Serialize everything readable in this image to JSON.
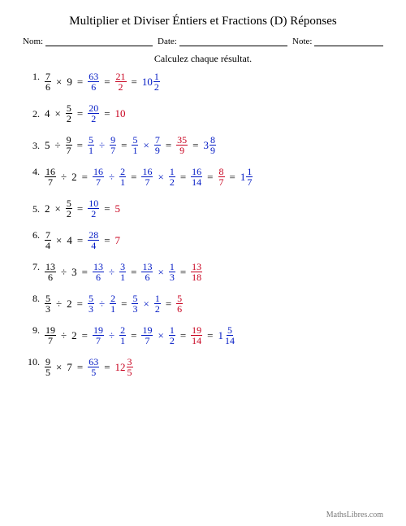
{
  "title": "Multiplier et Diviser Éntiers et Fractions (D) Réponses",
  "labels": {
    "name": "Nom:",
    "date": "Date:",
    "note": "Note:"
  },
  "instruction": "Calculez chaque résultat.",
  "footer": "MathsLibres.com",
  "colors": {
    "blue": "#0018c4",
    "red": "#c8001e",
    "text": "#000000",
    "bg": "#ffffff",
    "footer": "#7a7a7a"
  },
  "typography": {
    "base_font": "Times New Roman",
    "title_size": 15,
    "body_size": 12,
    "label_size": 11
  },
  "problems": [
    {
      "given": {
        "lhs": {
          "type": "frac",
          "n": "7",
          "d": "6"
        },
        "op": "×",
        "rhs": {
          "type": "int",
          "v": "9"
        }
      },
      "steps": [
        {
          "expr": [
            {
              "type": "frac",
              "n": "63",
              "d": "6",
              "color": "blue"
            }
          ]
        },
        {
          "expr": [
            {
              "type": "frac",
              "n": "21",
              "d": "2",
              "color": "red"
            }
          ]
        },
        {
          "expr": [
            {
              "type": "mixed",
              "w": "10",
              "n": "1",
              "d": "2",
              "color": "blue"
            }
          ]
        }
      ]
    },
    {
      "given": {
        "lhs": {
          "type": "int",
          "v": "4"
        },
        "op": "×",
        "rhs": {
          "type": "frac",
          "n": "5",
          "d": "2"
        }
      },
      "steps": [
        {
          "expr": [
            {
              "type": "frac",
              "n": "20",
              "d": "2",
              "color": "blue"
            }
          ]
        },
        {
          "expr": [
            {
              "type": "int",
              "v": "10",
              "color": "red"
            }
          ]
        }
      ]
    },
    {
      "given": {
        "lhs": {
          "type": "int",
          "v": "5"
        },
        "op": "÷",
        "rhs": {
          "type": "frac",
          "n": "9",
          "d": "7"
        }
      },
      "steps": [
        {
          "expr": [
            {
              "type": "frac",
              "n": "5",
              "d": "1",
              "color": "blue"
            },
            {
              "type": "op",
              "v": "÷",
              "color": "blue"
            },
            {
              "type": "frac",
              "n": "9",
              "d": "7",
              "color": "blue"
            }
          ]
        },
        {
          "expr": [
            {
              "type": "frac",
              "n": "5",
              "d": "1",
              "color": "blue"
            },
            {
              "type": "op",
              "v": "×",
              "color": "blue"
            },
            {
              "type": "frac",
              "n": "7",
              "d": "9",
              "color": "blue"
            }
          ]
        },
        {
          "expr": [
            {
              "type": "frac",
              "n": "35",
              "d": "9",
              "color": "red"
            }
          ]
        },
        {
          "expr": [
            {
              "type": "mixed",
              "w": "3",
              "n": "8",
              "d": "9",
              "color": "blue"
            }
          ]
        }
      ]
    },
    {
      "given": {
        "lhs": {
          "type": "frac",
          "n": "16",
          "d": "7"
        },
        "op": "÷",
        "rhs": {
          "type": "int",
          "v": "2"
        }
      },
      "steps": [
        {
          "expr": [
            {
              "type": "frac",
              "n": "16",
              "d": "7",
              "color": "blue"
            },
            {
              "type": "op",
              "v": "÷",
              "color": "blue"
            },
            {
              "type": "frac",
              "n": "2",
              "d": "1",
              "color": "blue"
            }
          ]
        },
        {
          "expr": [
            {
              "type": "frac",
              "n": "16",
              "d": "7",
              "color": "blue"
            },
            {
              "type": "op",
              "v": "×",
              "color": "blue"
            },
            {
              "type": "frac",
              "n": "1",
              "d": "2",
              "color": "blue"
            }
          ]
        },
        {
          "expr": [
            {
              "type": "frac",
              "n": "16",
              "d": "14",
              "color": "blue"
            }
          ]
        },
        {
          "expr": [
            {
              "type": "frac",
              "n": "8",
              "d": "7",
              "color": "red"
            }
          ]
        },
        {
          "expr": [
            {
              "type": "mixed",
              "w": "1",
              "n": "1",
              "d": "7",
              "color": "blue"
            }
          ]
        }
      ]
    },
    {
      "given": {
        "lhs": {
          "type": "int",
          "v": "2"
        },
        "op": "×",
        "rhs": {
          "type": "frac",
          "n": "5",
          "d": "2"
        }
      },
      "steps": [
        {
          "expr": [
            {
              "type": "frac",
              "n": "10",
              "d": "2",
              "color": "blue"
            }
          ]
        },
        {
          "expr": [
            {
              "type": "int",
              "v": "5",
              "color": "red"
            }
          ]
        }
      ]
    },
    {
      "given": {
        "lhs": {
          "type": "frac",
          "n": "7",
          "d": "4"
        },
        "op": "×",
        "rhs": {
          "type": "int",
          "v": "4"
        }
      },
      "steps": [
        {
          "expr": [
            {
              "type": "frac",
              "n": "28",
              "d": "4",
              "color": "blue"
            }
          ]
        },
        {
          "expr": [
            {
              "type": "int",
              "v": "7",
              "color": "red"
            }
          ]
        }
      ]
    },
    {
      "given": {
        "lhs": {
          "type": "frac",
          "n": "13",
          "d": "6"
        },
        "op": "÷",
        "rhs": {
          "type": "int",
          "v": "3"
        }
      },
      "steps": [
        {
          "expr": [
            {
              "type": "frac",
              "n": "13",
              "d": "6",
              "color": "blue"
            },
            {
              "type": "op",
              "v": "÷",
              "color": "blue"
            },
            {
              "type": "frac",
              "n": "3",
              "d": "1",
              "color": "blue"
            }
          ]
        },
        {
          "expr": [
            {
              "type": "frac",
              "n": "13",
              "d": "6",
              "color": "blue"
            },
            {
              "type": "op",
              "v": "×",
              "color": "blue"
            },
            {
              "type": "frac",
              "n": "1",
              "d": "3",
              "color": "blue"
            }
          ]
        },
        {
          "expr": [
            {
              "type": "frac",
              "n": "13",
              "d": "18",
              "color": "red"
            }
          ]
        }
      ]
    },
    {
      "given": {
        "lhs": {
          "type": "frac",
          "n": "5",
          "d": "3"
        },
        "op": "÷",
        "rhs": {
          "type": "int",
          "v": "2"
        }
      },
      "steps": [
        {
          "expr": [
            {
              "type": "frac",
              "n": "5",
              "d": "3",
              "color": "blue"
            },
            {
              "type": "op",
              "v": "÷",
              "color": "blue"
            },
            {
              "type": "frac",
              "n": "2",
              "d": "1",
              "color": "blue"
            }
          ]
        },
        {
          "expr": [
            {
              "type": "frac",
              "n": "5",
              "d": "3",
              "color": "blue"
            },
            {
              "type": "op",
              "v": "×",
              "color": "blue"
            },
            {
              "type": "frac",
              "n": "1",
              "d": "2",
              "color": "blue"
            }
          ]
        },
        {
          "expr": [
            {
              "type": "frac",
              "n": "5",
              "d": "6",
              "color": "red"
            }
          ]
        }
      ]
    },
    {
      "given": {
        "lhs": {
          "type": "frac",
          "n": "19",
          "d": "7"
        },
        "op": "÷",
        "rhs": {
          "type": "int",
          "v": "2"
        }
      },
      "steps": [
        {
          "expr": [
            {
              "type": "frac",
              "n": "19",
              "d": "7",
              "color": "blue"
            },
            {
              "type": "op",
              "v": "÷",
              "color": "blue"
            },
            {
              "type": "frac",
              "n": "2",
              "d": "1",
              "color": "blue"
            }
          ]
        },
        {
          "expr": [
            {
              "type": "frac",
              "n": "19",
              "d": "7",
              "color": "blue"
            },
            {
              "type": "op",
              "v": "×",
              "color": "blue"
            },
            {
              "type": "frac",
              "n": "1",
              "d": "2",
              "color": "blue"
            }
          ]
        },
        {
          "expr": [
            {
              "type": "frac",
              "n": "19",
              "d": "14",
              "color": "red"
            }
          ]
        },
        {
          "expr": [
            {
              "type": "mixed",
              "w": "1",
              "n": "5",
              "d": "14",
              "color": "blue"
            }
          ]
        }
      ]
    },
    {
      "given": {
        "lhs": {
          "type": "frac",
          "n": "9",
          "d": "5"
        },
        "op": "×",
        "rhs": {
          "type": "int",
          "v": "7"
        }
      },
      "steps": [
        {
          "expr": [
            {
              "type": "frac",
              "n": "63",
              "d": "5",
              "color": "blue"
            }
          ]
        },
        {
          "expr": [
            {
              "type": "mixed",
              "w": "12",
              "n": "3",
              "d": "5",
              "color": "red"
            }
          ]
        }
      ]
    }
  ]
}
